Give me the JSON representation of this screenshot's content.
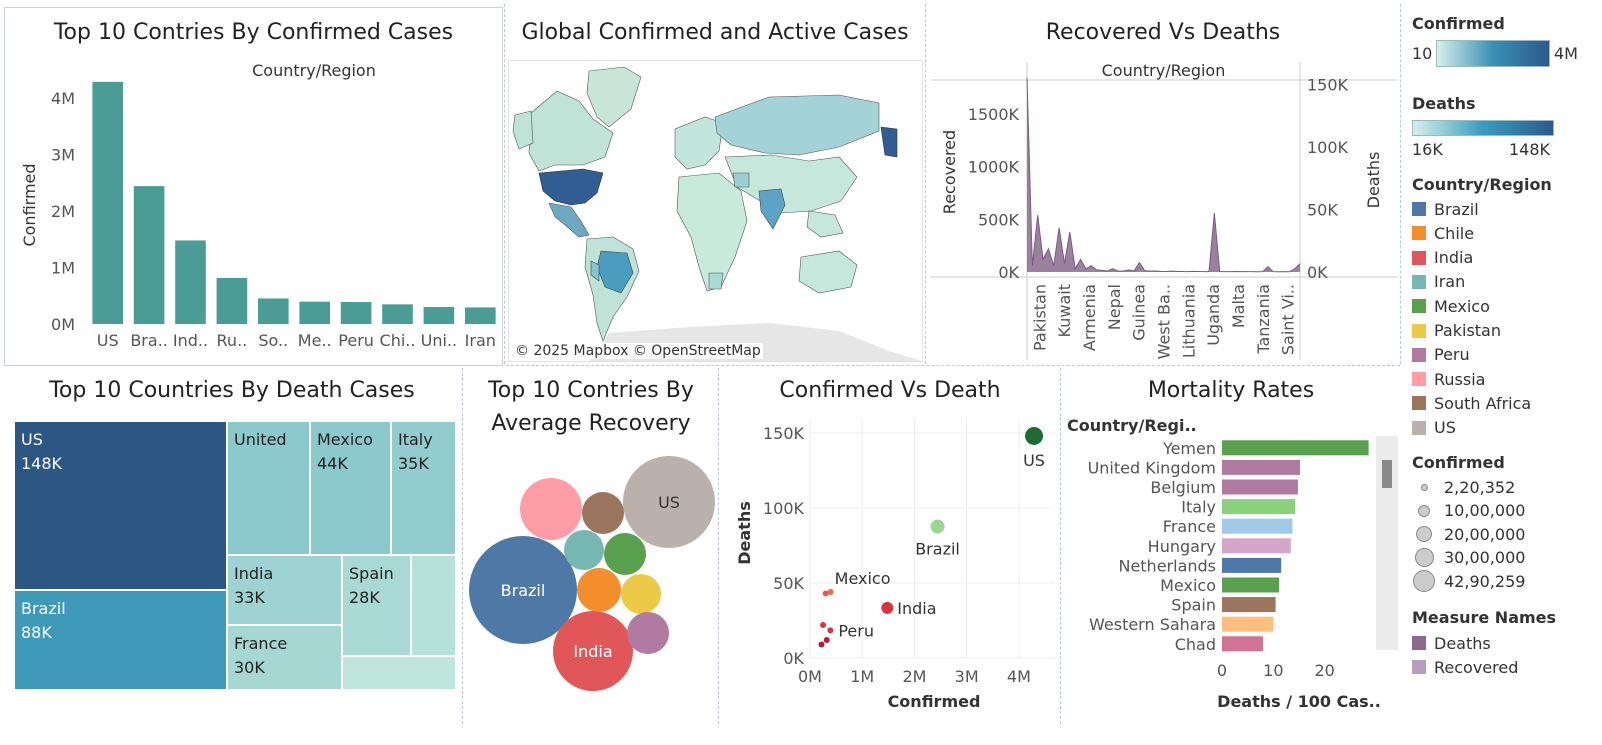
{
  "dashboard": {
    "bar_title": "Top 10 Contries By Confirmed Cases",
    "map_title": "Global Confirmed and Active Cases",
    "map_credit": "© 2025 Mapbox © OpenStreetMap",
    "dual_title": "Recovered Vs Deaths",
    "tree_title": "Top 10 Countries By Death Cases",
    "bubble_title_1": "Top 10 Contries By",
    "bubble_title_2": "Average Recovery",
    "scatter_title": "Confirmed Vs Death",
    "mort_title": "Mortality Rates"
  },
  "colors": {
    "teal_bar": "#4a9c94",
    "brazil": "#4e79a7",
    "chile": "#f28e2b",
    "india": "#e15759",
    "iran": "#76b7b2",
    "mexico": "#59a14f",
    "pakistan": "#edc948",
    "peru": "#b07aa1",
    "russia": "#ff9da7",
    "south_africa": "#9c755f",
    "us": "#bab0ac",
    "deaths_area": "#8b6a8e",
    "recovered_area": "#b89cc0"
  },
  "legend": {
    "confirmed_title": "Confirmed",
    "confirmed_min": "10",
    "confirmed_max": "4M",
    "deaths_title": "Deaths",
    "deaths_min": "16K",
    "deaths_max": "148K",
    "country_title": "Country/Region",
    "countries": [
      "Brazil",
      "Chile",
      "India",
      "Iran",
      "Mexico",
      "Pakistan",
      "Peru",
      "Russia",
      "South Africa",
      "US"
    ],
    "size_title": "Confirmed",
    "sizes": [
      "2,20,352",
      "10,00,000",
      "20,00,000",
      "30,00,000",
      "42,90,259"
    ],
    "measure_title": "Measure Names",
    "measures": [
      "Deaths",
      "Recovered"
    ]
  },
  "chart_data": [
    {
      "id": "bar",
      "type": "bar",
      "title": "Top 10 Contries By Confirmed Cases",
      "header": "Country/Region",
      "ylabel": "Confirmed",
      "categories": [
        "US",
        "Bra..",
        "Ind..",
        "Ru..",
        "So..",
        "Me..",
        "Peru",
        "Chi..",
        "Uni..",
        "Iran"
      ],
      "values": [
        4290259,
        2442375,
        1480073,
        816680,
        452529,
        395489,
        389717,
        347923,
        301708,
        293606
      ],
      "ylim": [
        0,
        4500000
      ],
      "yticks": [
        "0M",
        "1M",
        "2M",
        "3M",
        "4M"
      ]
    },
    {
      "id": "dual",
      "type": "area",
      "title": "Recovered Vs Deaths",
      "header": "Country/Region",
      "ylabel_left": "Recovered",
      "ylabel_right": "Deaths",
      "categories": [
        "Pakistan",
        "Kuwait",
        "Armenia",
        "Nepal",
        "Guinea",
        "West Ba..",
        "Lithuania",
        "Uganda",
        "Malta",
        "Tanzania",
        "Saint Vi.."
      ],
      "left_ticks": [
        "0K",
        "500K",
        "1000K",
        "1500K"
      ],
      "right_ticks": [
        "0K",
        "50K",
        "100K",
        "150K"
      ],
      "left_ylim": [
        0,
        1900000
      ],
      "recovered_series": [
        1846641,
        60000,
        540000,
        120000,
        220000,
        60000,
        420000,
        80000,
        380000,
        30000,
        120000,
        30000,
        60000,
        20000,
        15000,
        10000,
        30000,
        10000,
        8000,
        20000,
        10000,
        90000,
        12000,
        8000,
        10000,
        6000,
        5000,
        8000,
        6000,
        5000,
        4000,
        6000,
        5000,
        3000,
        4000,
        560000,
        4000,
        3000,
        4000,
        5000,
        3000,
        4000,
        3000,
        2000,
        3000,
        50000,
        3000,
        2000,
        3000,
        2000,
        30000,
        80000
      ]
    },
    {
      "id": "tree",
      "type": "treemap",
      "title": "Top 10 Countries By Death Cases",
      "items": [
        {
          "label": "US",
          "value": "148K",
          "deaths": 148011
        },
        {
          "label": "Brazil",
          "value": "88K",
          "deaths": 87618
        },
        {
          "label": "United",
          "value": "",
          "deaths": 45844
        },
        {
          "label": "Mexico",
          "value": "44K",
          "deaths": 44022
        },
        {
          "label": "Italy",
          "value": "35K",
          "deaths": 35112
        },
        {
          "label": "India",
          "value": "33K",
          "deaths": 33408
        },
        {
          "label": "France",
          "value": "30K",
          "deaths": 30212
        },
        {
          "label": "Spain",
          "value": "28K",
          "deaths": 28432
        },
        {
          "label": "",
          "value": "",
          "deaths": 18000
        },
        {
          "label": "",
          "value": "",
          "deaths": 16000
        }
      ]
    },
    {
      "id": "bubble",
      "type": "bubble",
      "title": "Top 10 Contries By Average Recovery",
      "labels": [
        "Brazil",
        "US",
        "India",
        "Russia",
        "South Africa",
        "Iran",
        "Mexico",
        "Chile",
        "Pakistan",
        "Peru"
      ],
      "shown_labels": {
        "Brazil": "Brazil",
        "US": "US",
        "India": "India"
      }
    },
    {
      "id": "scatter",
      "type": "scatter",
      "title": "Confirmed Vs Death",
      "xlabel": "Confirmed",
      "ylabel": "Deaths",
      "xlim": [
        0,
        4500000
      ],
      "ylim": [
        0,
        160000
      ],
      "xticks": [
        {
          "v": 0,
          "t": "0M"
        },
        {
          "v": 1000000,
          "t": "1M"
        },
        {
          "v": 2000000,
          "t": "2M"
        },
        {
          "v": 3000000,
          "t": "3M"
        },
        {
          "v": 4000000,
          "t": "4M"
        }
      ],
      "yticks": [
        {
          "v": 0,
          "t": "0K"
        },
        {
          "v": 50000,
          "t": "50K"
        },
        {
          "v": 100000,
          "t": "100K"
        },
        {
          "v": 150000,
          "t": "150K"
        }
      ],
      "points": [
        {
          "label": "US",
          "x": 4290259,
          "y": 148011,
          "color": "#1e6b34",
          "size": 9
        },
        {
          "label": "Brazil",
          "x": 2442375,
          "y": 87618,
          "color": "#9ed58f",
          "size": 7
        },
        {
          "label": "India",
          "x": 1480073,
          "y": 33408,
          "color": "#d93240",
          "size": 6
        },
        {
          "label": "Mexico",
          "x": 395489,
          "y": 44022,
          "color": "#e86a5a",
          "size": 3
        },
        {
          "label": "",
          "x": 300000,
          "y": 43000,
          "color": "#e8594b",
          "size": 3
        },
        {
          "label": "Peru",
          "x": 389717,
          "y": 18418,
          "color": "#d43545",
          "size": 3
        },
        {
          "label": "",
          "x": 250000,
          "y": 22000,
          "color": "#d7343f",
          "size": 3
        },
        {
          "label": "",
          "x": 320000,
          "y": 12000,
          "color": "#b71d2e",
          "size": 3
        },
        {
          "label": "",
          "x": 220000,
          "y": 9000,
          "color": "#b01d2e",
          "size": 3
        }
      ]
    },
    {
      "id": "mort",
      "type": "bar",
      "orientation": "horizontal",
      "title": "Mortality Rates",
      "header": "Country/Regi..",
      "xlabel": "Deaths / 100 Cas..",
      "categories": [
        "Yemen",
        "United Kingdom",
        "Belgium",
        "Italy",
        "France",
        "Hungary",
        "Netherlands",
        "Mexico",
        "Spain",
        "Western Sahara",
        "Chad"
      ],
      "values": [
        28.56,
        15.19,
        14.79,
        14.26,
        13.71,
        13.4,
        11.53,
        11.13,
        10.44,
        10.0,
        7.99
      ],
      "colors": [
        "#59a14f",
        "#b07aa1",
        "#b07aa1",
        "#8cd17d",
        "#a0cbe8",
        "#d4a6c8",
        "#4e79a7",
        "#59a14f",
        "#9c755f",
        "#ffbe7d",
        "#d37295"
      ],
      "xlim": [
        0,
        30
      ],
      "xticks": [
        {
          "v": 0,
          "t": "0"
        },
        {
          "v": 10,
          "t": "10"
        },
        {
          "v": 20,
          "t": "20"
        }
      ]
    }
  ]
}
